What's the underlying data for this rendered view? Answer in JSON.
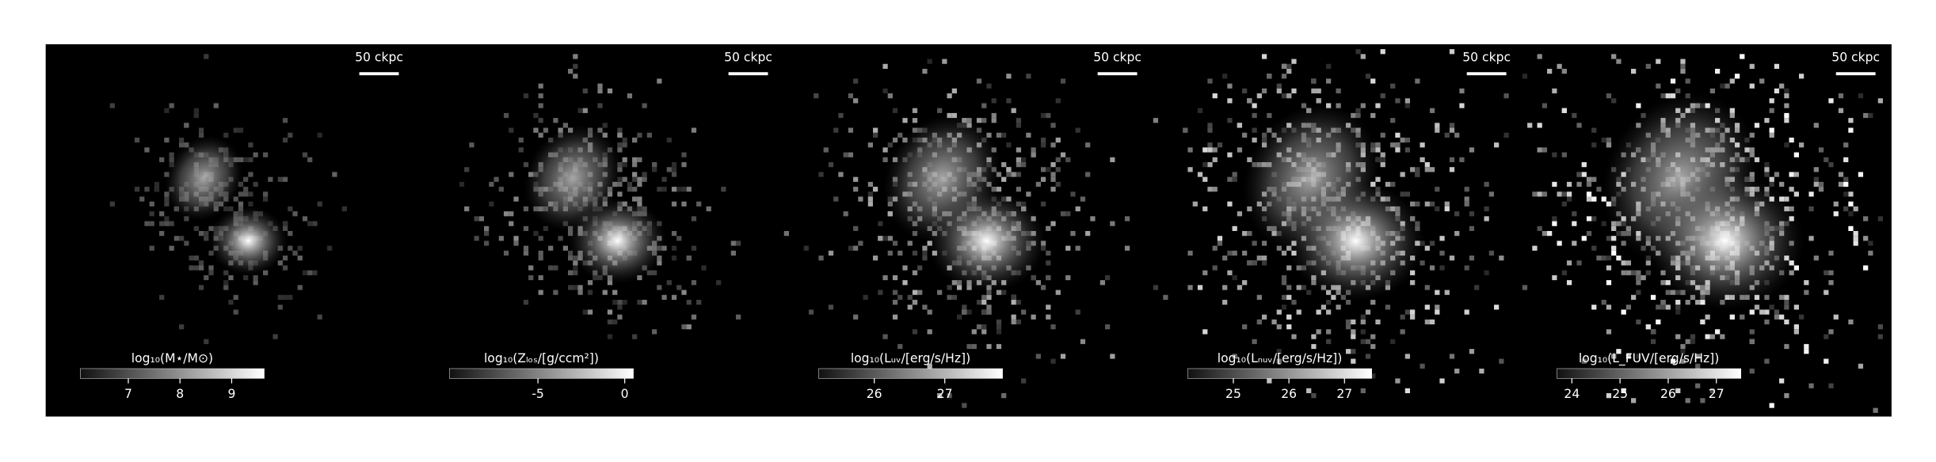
{
  "panels": [
    {
      "scale_label": "50 ckpc",
      "colorbar": {
        "label": "log₁₀(M⋆/M⊙)",
        "range": [
          6.07,
          9.63
        ],
        "ticks": [
          7,
          8,
          9
        ]
      }
    },
    {
      "scale_label": "50 ckpc",
      "colorbar": {
        "label": "log₁₀(Zₗₒₛ/[g/ccm²])",
        "range": [
          -10.1,
          0.5
        ],
        "ticks": [
          -5,
          0
        ]
      }
    },
    {
      "scale_label": "50 ckpc",
      "colorbar": {
        "label": "log₁₀(Lᵤᵥ/[erg/s/Hz])",
        "range": [
          25.21,
          27.82
        ],
        "ticks": [
          26,
          27
        ]
      }
    },
    {
      "scale_label": "50 ckpc",
      "colorbar": {
        "label": "log₁₀(Lₙᵤᵥ/[erg/s/Hz])",
        "range": [
          24.18,
          27.49
        ],
        "ticks": [
          25,
          26,
          27
        ]
      }
    },
    {
      "scale_label": "50 ckpc",
      "colorbar": {
        "label": "log₁₀(L_FUV/[erg/s/Hz])",
        "range": [
          23.69,
          27.51
        ],
        "ticks": [
          24,
          25,
          26,
          27
        ]
      }
    }
  ]
}
